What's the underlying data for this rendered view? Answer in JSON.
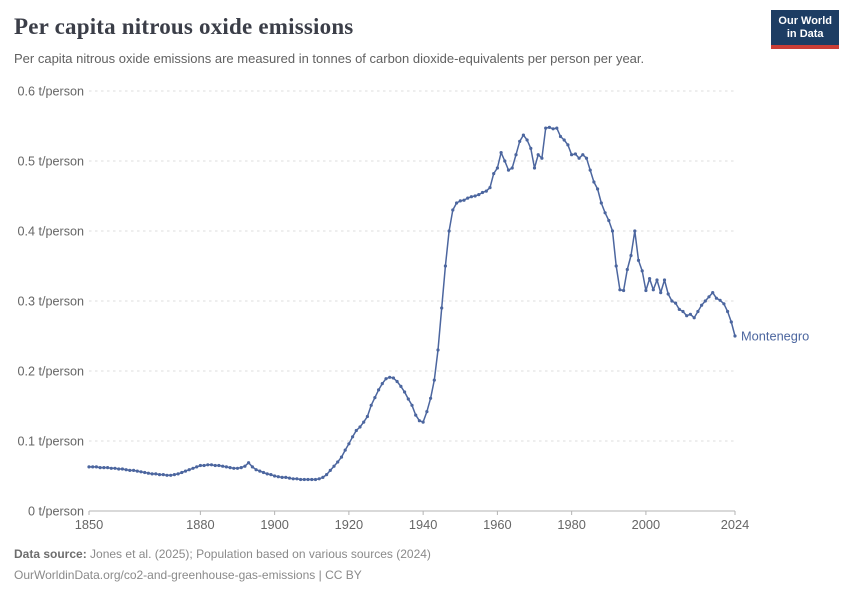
{
  "header": {
    "title": "Per capita nitrous oxide emissions",
    "subtitle": "Per capita nitrous oxide emissions are measured in tonnes of carbon dioxide-equivalents per person per year.",
    "logo": {
      "line1": "Our World",
      "line2": "in Data"
    }
  },
  "brand": {
    "logo_background": "#1d3d63",
    "logo_stripe": "#cb3e36"
  },
  "chart_data": {
    "type": "line",
    "title": "Per capita nitrous oxide emissions",
    "subtitle": "Per capita nitrous oxide emissions are measured in tonnes of carbon dioxide-equivalents per person per year.",
    "xlabel": "",
    "ylabel": "",
    "xlim": [
      1850,
      2024
    ],
    "ylim": [
      0,
      0.6
    ],
    "grid": "horizontal-dashed",
    "legend_position": "end-of-line-label",
    "x_ticks": [
      1850,
      1880,
      1900,
      1920,
      1940,
      1960,
      1980,
      2000,
      2024
    ],
    "y_ticks": [
      {
        "value": 0,
        "label": "0 t/person"
      },
      {
        "value": 0.1,
        "label": "0.1 t/person"
      },
      {
        "value": 0.2,
        "label": "0.2 t/person"
      },
      {
        "value": 0.3,
        "label": "0.3 t/person"
      },
      {
        "value": 0.4,
        "label": "0.4 t/person"
      },
      {
        "value": 0.5,
        "label": "0.5 t/person"
      },
      {
        "value": 0.6,
        "label": "0.6 t/person"
      }
    ],
    "series": [
      {
        "name": "Montenegro",
        "color": "#4c669f",
        "x": [
          1850,
          1851,
          1852,
          1853,
          1854,
          1855,
          1856,
          1857,
          1858,
          1859,
          1860,
          1861,
          1862,
          1863,
          1864,
          1865,
          1866,
          1867,
          1868,
          1869,
          1870,
          1871,
          1872,
          1873,
          1874,
          1875,
          1876,
          1877,
          1878,
          1879,
          1880,
          1881,
          1882,
          1883,
          1884,
          1885,
          1886,
          1887,
          1888,
          1889,
          1890,
          1891,
          1892,
          1893,
          1894,
          1895,
          1896,
          1897,
          1898,
          1899,
          1900,
          1901,
          1902,
          1903,
          1904,
          1905,
          1906,
          1907,
          1908,
          1909,
          1910,
          1911,
          1912,
          1913,
          1914,
          1915,
          1916,
          1917,
          1918,
          1919,
          1920,
          1921,
          1922,
          1923,
          1924,
          1925,
          1926,
          1927,
          1928,
          1929,
          1930,
          1931,
          1932,
          1933,
          1934,
          1935,
          1936,
          1937,
          1938,
          1939,
          1940,
          1941,
          1942,
          1943,
          1944,
          1945,
          1946,
          1947,
          1948,
          1949,
          1950,
          1951,
          1952,
          1953,
          1954,
          1955,
          1956,
          1957,
          1958,
          1959,
          1960,
          1961,
          1962,
          1963,
          1964,
          1965,
          1966,
          1967,
          1968,
          1969,
          1970,
          1971,
          1972,
          1973,
          1974,
          1975,
          1976,
          1977,
          1978,
          1979,
          1980,
          1981,
          1982,
          1983,
          1984,
          1985,
          1986,
          1987,
          1988,
          1989,
          1990,
          1991,
          1992,
          1993,
          1994,
          1995,
          1996,
          1997,
          1998,
          1999,
          2000,
          2001,
          2002,
          2003,
          2004,
          2005,
          2006,
          2007,
          2008,
          2009,
          2010,
          2011,
          2012,
          2013,
          2014,
          2015,
          2016,
          2017,
          2018,
          2019,
          2020,
          2021,
          2022,
          2023,
          2024
        ],
        "values": [
          0.063,
          0.063,
          0.063,
          0.062,
          0.062,
          0.062,
          0.061,
          0.061,
          0.06,
          0.06,
          0.059,
          0.058,
          0.058,
          0.057,
          0.056,
          0.055,
          0.054,
          0.053,
          0.053,
          0.052,
          0.052,
          0.051,
          0.051,
          0.052,
          0.053,
          0.055,
          0.057,
          0.059,
          0.061,
          0.063,
          0.065,
          0.065,
          0.066,
          0.066,
          0.065,
          0.065,
          0.064,
          0.063,
          0.062,
          0.061,
          0.061,
          0.062,
          0.064,
          0.069,
          0.063,
          0.059,
          0.057,
          0.055,
          0.053,
          0.052,
          0.05,
          0.049,
          0.048,
          0.048,
          0.047,
          0.046,
          0.046,
          0.045,
          0.045,
          0.045,
          0.045,
          0.045,
          0.046,
          0.048,
          0.052,
          0.058,
          0.064,
          0.07,
          0.077,
          0.087,
          0.096,
          0.106,
          0.115,
          0.12,
          0.127,
          0.135,
          0.151,
          0.162,
          0.173,
          0.182,
          0.189,
          0.191,
          0.19,
          0.185,
          0.178,
          0.17,
          0.16,
          0.151,
          0.137,
          0.129,
          0.127,
          0.142,
          0.161,
          0.187,
          0.23,
          0.29,
          0.35,
          0.4,
          0.43,
          0.44,
          0.443,
          0.444,
          0.447,
          0.449,
          0.45,
          0.452,
          0.455,
          0.457,
          0.462,
          0.482,
          0.49,
          0.512,
          0.5,
          0.487,
          0.49,
          0.509,
          0.528,
          0.537,
          0.53,
          0.518,
          0.49,
          0.509,
          0.504,
          0.547,
          0.548,
          0.546,
          0.547,
          0.535,
          0.53,
          0.523,
          0.509,
          0.51,
          0.504,
          0.509,
          0.504,
          0.487,
          0.47,
          0.46,
          0.44,
          0.426,
          0.415,
          0.4,
          0.35,
          0.316,
          0.315,
          0.345,
          0.365,
          0.4,
          0.358,
          0.343,
          0.315,
          0.332,
          0.316,
          0.33,
          0.312,
          0.33,
          0.31,
          0.3,
          0.297,
          0.288,
          0.285,
          0.279,
          0.281,
          0.276,
          0.285,
          0.294,
          0.3,
          0.306,
          0.312,
          0.304,
          0.301,
          0.296,
          0.285,
          0.27,
          0.25
        ]
      }
    ]
  },
  "footer": {
    "datasource_label": "Data source:",
    "datasource_text": " Jones et al. (2025); Population based on various sources (2024)",
    "link_text": "OurWorldinData.org/co2-and-greenhouse-gas-emissions",
    "license_separator": " | ",
    "license": "CC BY"
  }
}
